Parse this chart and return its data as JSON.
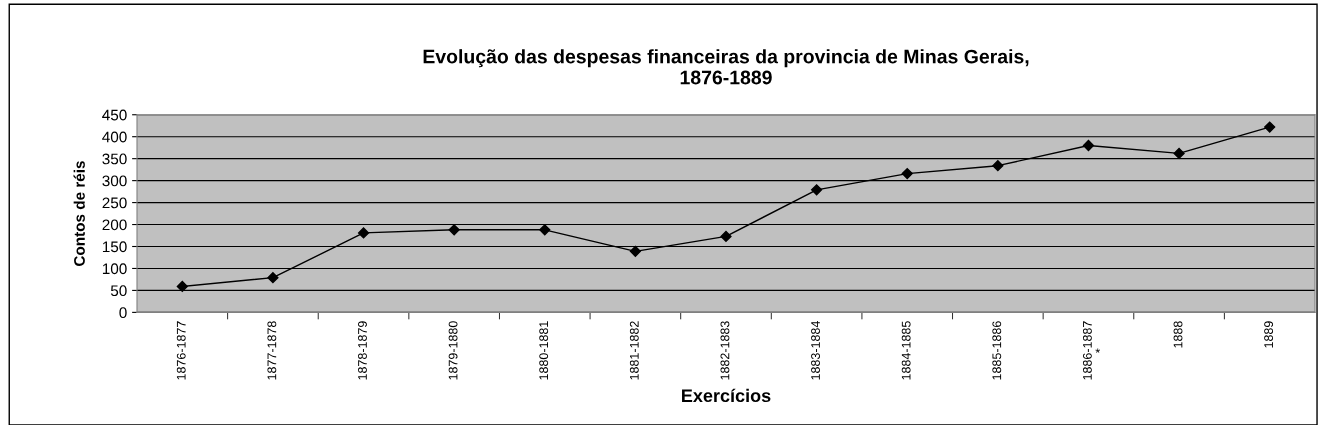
{
  "chart_data": {
    "type": "line",
    "title": "Evolução das despesas financeiras da provincia de Minas Gerais,\n1876-1889",
    "xlabel": "Exercícios",
    "ylabel": "Contos de réis",
    "categories": [
      "1876-1877",
      "1877-1878",
      "1878-1879",
      "1879-1880",
      "1880-1881",
      "1881-1882",
      "1882-1883",
      "1883-1884",
      "1884-1885",
      "1885-1886",
      "1886-1887",
      "1888",
      "1889"
    ],
    "series": [
      {
        "color": "#000000",
        "values": [
          59,
          79,
          181,
          188,
          188,
          139,
          173,
          279,
          316,
          334,
          380,
          362,
          422
        ]
      }
    ],
    "ylim": [
      0,
      450
    ],
    "yticks": [
      0,
      50,
      100,
      150,
      200,
      250,
      300,
      350,
      400,
      450
    ],
    "grid": "y",
    "marker": "diamond",
    "line_style": "solid",
    "legend": false,
    "annotations": [
      "*"
    ]
  }
}
